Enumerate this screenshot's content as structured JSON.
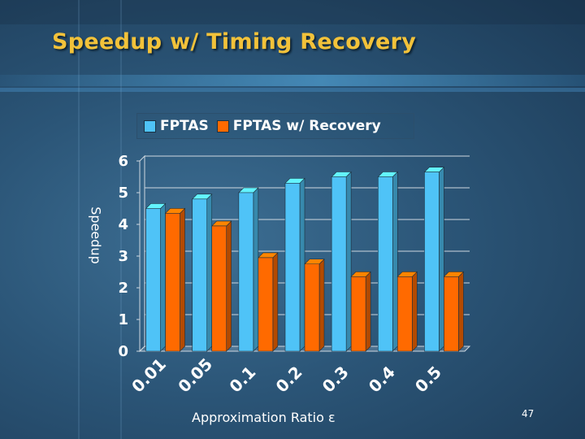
{
  "slide": {
    "title": "Speedup w/ Timing Recovery",
    "page_number": "47"
  },
  "colors": {
    "title": "#f2c23a",
    "fptas": "#4fc3f7",
    "fptas_recovery": "#ff6a00",
    "grid": "#cfd8e0"
  },
  "chart_data": {
    "type": "bar",
    "categories": [
      "0.01",
      "0.05",
      "0.1",
      "0.2",
      "0.3",
      "0.4",
      "0.5"
    ],
    "series": [
      {
        "name": "FPTAS",
        "values": [
          4.5,
          4.8,
          5.0,
          5.3,
          5.5,
          5.5,
          5.65
        ]
      },
      {
        "name": "FPTAS w/ Recovery",
        "values": [
          4.35,
          3.95,
          2.95,
          2.75,
          2.35,
          2.35,
          2.35
        ]
      }
    ],
    "xlabel": "Approximation Ratio ε",
    "ylabel": "Speedup",
    "ylim": [
      0,
      6
    ],
    "yticks": [
      "0",
      "1",
      "2",
      "3",
      "4",
      "5",
      "6"
    ],
    "grid": true,
    "legend_position": "top",
    "three_d": true
  }
}
